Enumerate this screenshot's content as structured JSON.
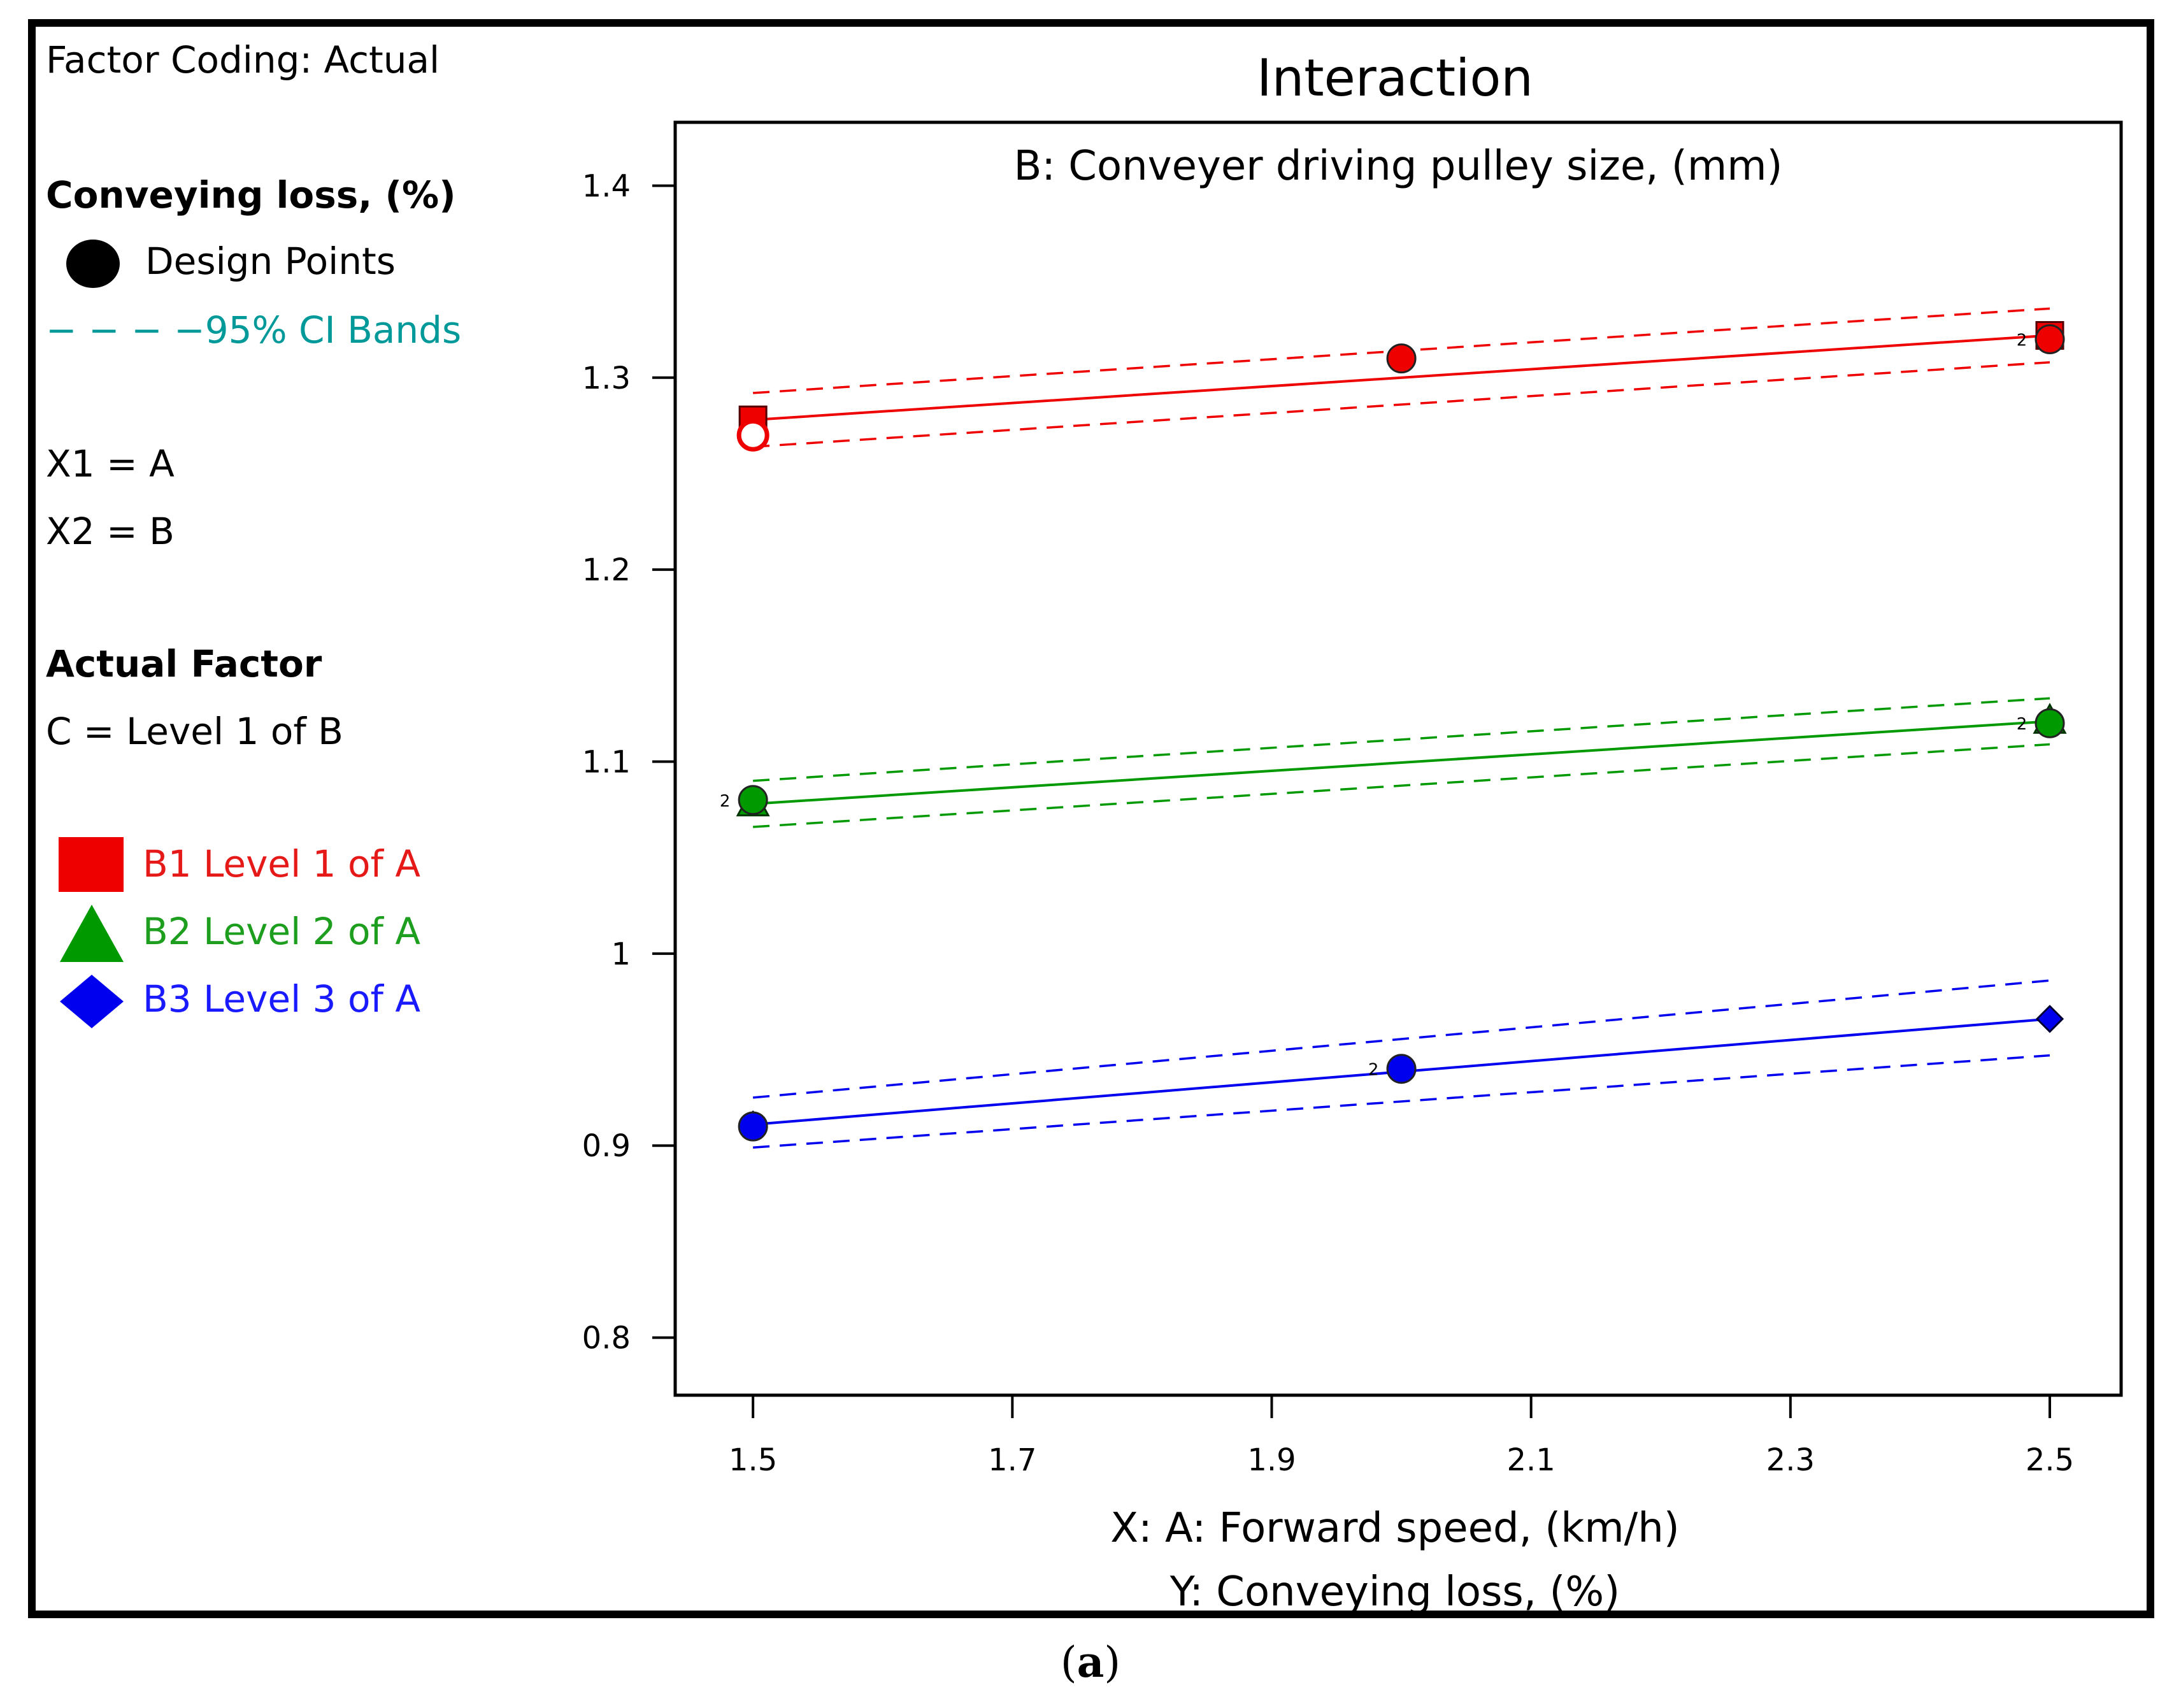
{
  "legend": {
    "factor_coding": "Factor Coding: Actual",
    "response_title": "Conveying loss,  (%)",
    "design_points": "Design Points",
    "ci_bands": "− − − −95% CI Bands",
    "x1": "X1 = A",
    "x2": "X2 = B",
    "actual_factor_title": "Actual Factor",
    "actual_factor_value": "C = Level 1 of B",
    "series": [
      {
        "label": "B1 Level 1 of A",
        "symbol": "square",
        "color": "#ee0000"
      },
      {
        "label": "B2 Level 2 of A",
        "symbol": "triangle",
        "color": "#009900"
      },
      {
        "label": "B3 Level 3 of A",
        "symbol": "diamond",
        "color": "#0000ee"
      }
    ]
  },
  "caption": {
    "paren_open": "(",
    "letter": "a",
    "paren_close": ")"
  },
  "chart_data": {
    "type": "line",
    "title": "Interaction",
    "subtitle": "B: Conveyer driving pulley size,  (mm)",
    "xlabel": "X: A: Forward speed,  (km/h)",
    "ylabel": "Y: Conveying loss,  (%)",
    "xlim": [
      1.44,
      2.555
    ],
    "ylim": [
      0.77,
      1.433
    ],
    "xticks": [
      1.5,
      1.7,
      1.9,
      2.1,
      2.3,
      2.5
    ],
    "yticks": [
      0.8,
      0.9,
      1,
      1.1,
      1.2,
      1.3,
      1.4
    ],
    "xtick_labels": [
      "1.5",
      "1.7",
      "1.9",
      "2.1",
      "2.3",
      "2.5"
    ],
    "ytick_labels": [
      "0.8",
      "0.9",
      "1",
      "1.1",
      "1.2",
      "1.3",
      "1.4"
    ],
    "grid": false,
    "series": [
      {
        "name": "B1 Level 1 of A",
        "color": "#ee0000",
        "line": {
          "x": [
            1.5,
            2.5
          ],
          "y": [
            1.278,
            1.322
          ]
        },
        "ci_upper": {
          "x": [
            1.5,
            2.5
          ],
          "y": [
            1.292,
            1.336
          ]
        },
        "ci_lower": {
          "x": [
            1.5,
            2.5
          ],
          "y": [
            1.264,
            1.308
          ]
        },
        "end_markers": [
          {
            "x": 1.5,
            "y": 1.278
          },
          {
            "x": 2.5,
            "y": 1.322
          }
        ],
        "design_points": [
          {
            "x": 1.5,
            "y": 1.27,
            "hollow": true
          },
          {
            "x": 2.0,
            "y": 1.31
          },
          {
            "x": 2.5,
            "y": 1.32,
            "count_label": "2"
          }
        ]
      },
      {
        "name": "B2 Level 2 of A",
        "color": "#009900",
        "line": {
          "x": [
            1.5,
            2.5
          ],
          "y": [
            1.078,
            1.121
          ]
        },
        "ci_upper": {
          "x": [
            1.5,
            2.5
          ],
          "y": [
            1.09,
            1.133
          ]
        },
        "ci_lower": {
          "x": [
            1.5,
            2.5
          ],
          "y": [
            1.066,
            1.109
          ]
        },
        "end_markers": [
          {
            "x": 1.5,
            "y": 1.078
          },
          {
            "x": 2.5,
            "y": 1.121
          }
        ],
        "design_points": [
          {
            "x": 1.5,
            "y": 1.08,
            "count_label": "2"
          },
          {
            "x": 2.5,
            "y": 1.12,
            "count_label": "2"
          }
        ]
      },
      {
        "name": "B3 Level 3 of A",
        "color": "#0000ee",
        "line": {
          "x": [
            1.5,
            2.5
          ],
          "y": [
            0.911,
            0.966
          ]
        },
        "ci_upper": {
          "x": [
            1.5,
            2.5
          ],
          "y": [
            0.925,
            0.986
          ]
        },
        "ci_lower": {
          "x": [
            1.5,
            2.5
          ],
          "y": [
            0.899,
            0.947
          ]
        },
        "end_markers": [
          {
            "x": 1.5,
            "y": 0.911
          },
          {
            "x": 2.5,
            "y": 0.966
          }
        ],
        "design_points": [
          {
            "x": 1.5,
            "y": 0.91
          },
          {
            "x": 2.0,
            "y": 0.94,
            "count_label": "2"
          }
        ]
      }
    ]
  }
}
